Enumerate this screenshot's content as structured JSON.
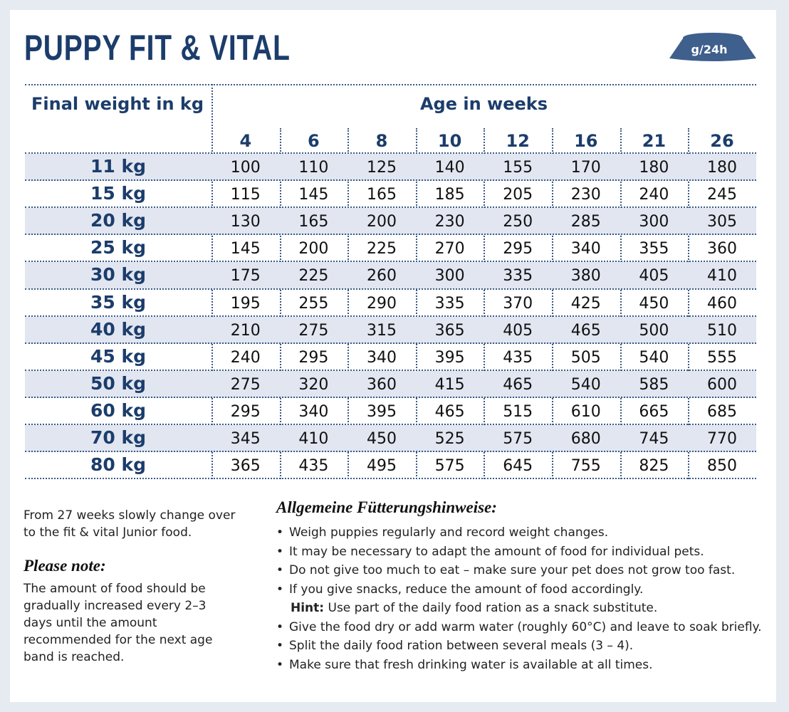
{
  "header": {
    "title": "PUPPY FIT & VITAL",
    "badge": "g/24h"
  },
  "table": {
    "corner": "Final weight in kg",
    "age_header": "Age in weeks",
    "columns": [
      4,
      6,
      8,
      10,
      12,
      16,
      21,
      26
    ],
    "rows": [
      {
        "label": "11 kg",
        "values": [
          100,
          110,
          125,
          140,
          155,
          170,
          180,
          180
        ]
      },
      {
        "label": "15 kg",
        "values": [
          115,
          145,
          165,
          185,
          205,
          230,
          240,
          245
        ]
      },
      {
        "label": "20 kg",
        "values": [
          130,
          165,
          200,
          230,
          250,
          285,
          300,
          305
        ]
      },
      {
        "label": "25 kg",
        "values": [
          145,
          200,
          225,
          270,
          295,
          340,
          355,
          360
        ]
      },
      {
        "label": "30 kg",
        "values": [
          175,
          225,
          260,
          300,
          335,
          380,
          405,
          410
        ]
      },
      {
        "label": "35 kg",
        "values": [
          195,
          255,
          290,
          335,
          370,
          425,
          450,
          460
        ]
      },
      {
        "label": "40 kg",
        "values": [
          210,
          275,
          315,
          365,
          405,
          465,
          500,
          510
        ]
      },
      {
        "label": "45 kg",
        "values": [
          240,
          295,
          340,
          395,
          435,
          505,
          540,
          555
        ]
      },
      {
        "label": "50 kg",
        "values": [
          275,
          320,
          360,
          415,
          465,
          540,
          585,
          600
        ]
      },
      {
        "label": "60 kg",
        "values": [
          295,
          340,
          395,
          465,
          515,
          610,
          665,
          685
        ]
      },
      {
        "label": "70 kg",
        "values": [
          345,
          410,
          450,
          525,
          575,
          680,
          745,
          770
        ]
      },
      {
        "label": "80 kg",
        "values": [
          365,
          435,
          495,
          575,
          645,
          755,
          825,
          850
        ]
      }
    ]
  },
  "notes": {
    "change": "From 27 weeks slowly change over to the fit & vital Junior food.",
    "please_note": {
      "heading": "Please note:",
      "text": "The amount of food should be gradually increased every 2–3 days until the amount recommended for the next age band is reached."
    },
    "general": {
      "heading": "Allgemeine Fütterungshinweise:",
      "items": [
        "Weigh puppies regularly and record weight changes.",
        "It may be necessary to adapt the amount of food for individual pets.",
        "Do not give too much to eat – make sure your pet does not grow too fast.",
        "If you give snacks, reduce the amount of food accordingly.",
        "Give the food dry or add warm water (roughly 60°C) and leave to soak briefly.",
        "Split the daily food ration between several meals (3 – 4).",
        "Make sure that fresh drinking water is available at all times."
      ],
      "hint": {
        "label": "Hint:",
        "text": "Use part of the daily food ration as a snack substitute."
      }
    }
  }
}
